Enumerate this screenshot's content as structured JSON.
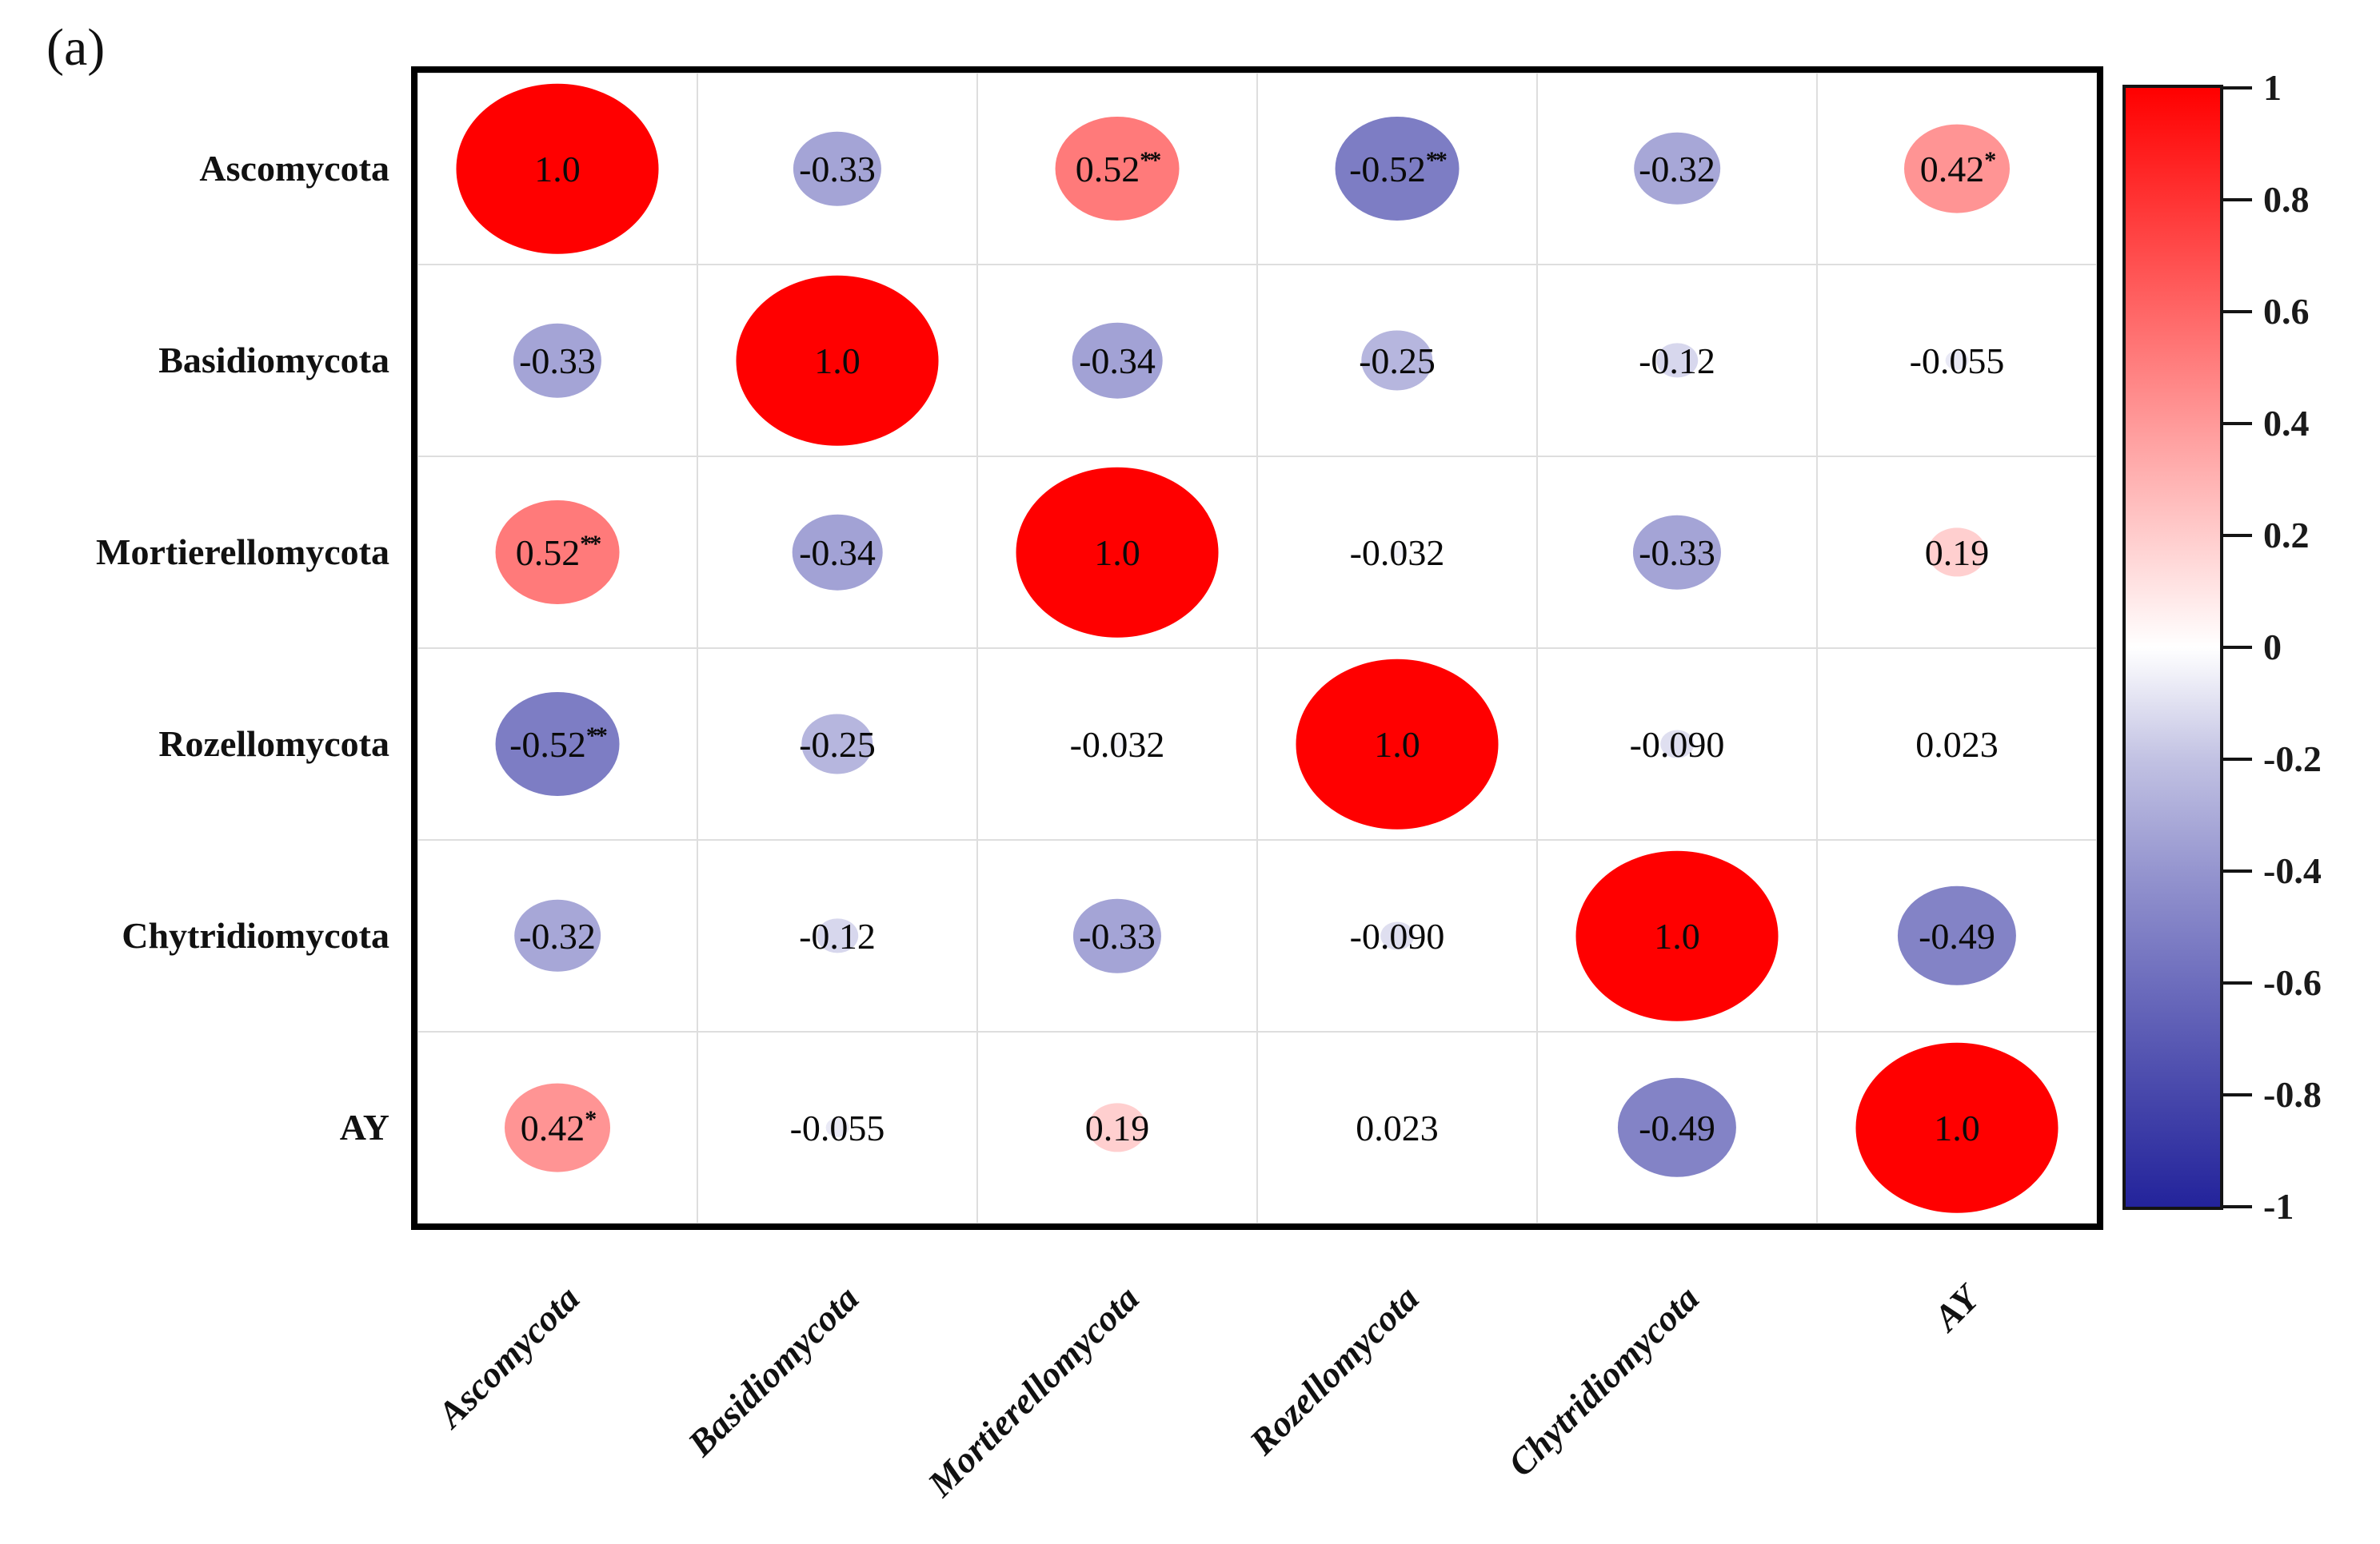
{
  "panel_label": "(a)",
  "chart_data": {
    "type": "heatmap",
    "subtype": "correlation-bubble-matrix",
    "variables": [
      "Ascomycota",
      "Basidiomycota",
      "Mortierellomycota",
      "Rozellomycota",
      "Chytridiomycota",
      "AY"
    ],
    "values": [
      [
        1.0,
        -0.33,
        0.52,
        -0.52,
        -0.32,
        0.42
      ],
      [
        -0.33,
        1.0,
        -0.34,
        -0.25,
        -0.12,
        -0.055
      ],
      [
        0.52,
        -0.34,
        1.0,
        -0.032,
        -0.33,
        0.19
      ],
      [
        -0.52,
        -0.25,
        -0.032,
        1.0,
        -0.09,
        0.023
      ],
      [
        -0.32,
        -0.12,
        -0.33,
        -0.09,
        1.0,
        -0.49
      ],
      [
        0.42,
        -0.055,
        0.19,
        0.023,
        -0.49,
        1.0
      ]
    ],
    "display_values": [
      [
        "1.0",
        "-0.33",
        "0.52",
        "-0.52",
        "-0.32",
        "0.42"
      ],
      [
        "-0.33",
        "1.0",
        "-0.34",
        "-0.25",
        "-0.12",
        "-0.055"
      ],
      [
        "0.52",
        "-0.34",
        "1.0",
        "-0.032",
        "-0.33",
        "0.19"
      ],
      [
        "-0.52",
        "-0.25",
        "-0.032",
        "1.0",
        "-0.090",
        "0.023"
      ],
      [
        "-0.32",
        "-0.12",
        "-0.33",
        "-0.090",
        "1.0",
        "-0.49"
      ],
      [
        "0.42",
        "-0.055",
        "0.19",
        "0.023",
        "-0.49",
        "1.0"
      ]
    ],
    "significance": [
      [
        "",
        "",
        "**",
        "**",
        "",
        "*"
      ],
      [
        "",
        "",
        "",
        "",
        "",
        ""
      ],
      [
        "**",
        "",
        "",
        "",
        "",
        ""
      ],
      [
        "**",
        "",
        "",
        "",
        "",
        ""
      ],
      [
        "",
        "",
        "",
        "",
        "",
        ""
      ],
      [
        "*",
        "",
        "",
        "",
        "",
        ""
      ]
    ],
    "colorbar": {
      "min": -1,
      "max": 1,
      "tick_labels": [
        "1",
        "0.8",
        "0.6",
        "0.4",
        "0.2",
        "0",
        "-0.2",
        "-0.4",
        "-0.6",
        "-0.8",
        "-1"
      ],
      "positive_color": "#FF0000",
      "zero_color": "#FFFFFF",
      "negative_color": "#2323A0"
    },
    "layout": {
      "x_label_rotation_deg": -45,
      "grid": true,
      "colorbar_position": "right",
      "bubble_size_encoding": "abs(correlation)"
    }
  }
}
